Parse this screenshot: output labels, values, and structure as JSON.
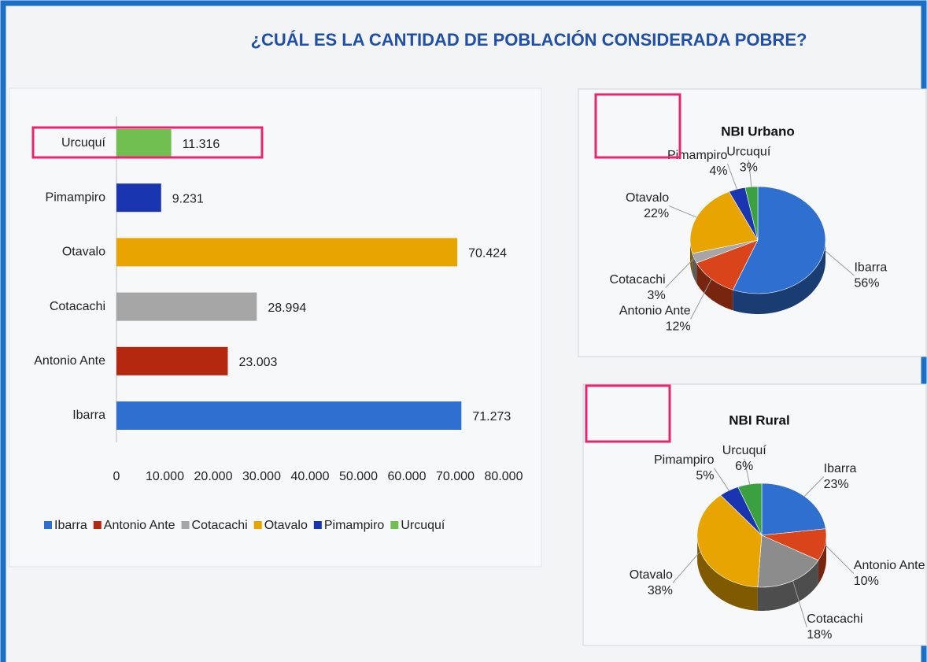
{
  "title": "¿CUÁL ES LA CANTIDAD DE POBLACIÓN CONSIDERADA POBRE?",
  "chart_data": [
    {
      "type": "bar",
      "orientation": "horizontal",
      "categories": [
        "Ibarra",
        "Antonio Ante",
        "Cotacachi",
        "Otavalo",
        "Pimampiro",
        "Urcuquí"
      ],
      "values": [
        71273,
        23003,
        28994,
        70424,
        9231,
        11316
      ],
      "value_labels": [
        "71.273",
        "23.003",
        "28.994",
        "70.424",
        "9.231",
        "11.316"
      ],
      "colors": [
        "#2e6fcf",
        "#b3280e",
        "#a6a6a6",
        "#e8a400",
        "#1a35b0",
        "#70bf50"
      ],
      "xlim": [
        0,
        80000
      ],
      "xticks": [
        0,
        {
          "value": 10000,
          "label": "10.000"
        },
        {
          "value": 20000,
          "label": "20.000"
        },
        {
          "value": 30000,
          "label": "30.000"
        },
        {
          "value": 40000,
          "label": "40.000"
        },
        {
          "value": 50000,
          "label": "50.000"
        },
        {
          "value": 60000,
          "label": "60.000"
        },
        {
          "value": 70000,
          "label": "70.000"
        },
        {
          "value": 80000,
          "label": "80.000"
        }
      ],
      "legend": "bottom"
    },
    {
      "type": "pie",
      "title": "NBI Urbano",
      "categories": [
        "Ibarra",
        "Antonio Ante",
        "Cotacachi",
        "Otavalo",
        "Pimampiro",
        "Urcuquí"
      ],
      "values": [
        56,
        12,
        3,
        22,
        4,
        3
      ],
      "value_labels": [
        "56%",
        "12%",
        "3%",
        "22%",
        "4%",
        "3%"
      ],
      "colors": [
        "#2e6fcf",
        "#d9441a",
        "#a6a6a6",
        "#e8a400",
        "#1a35b0",
        "#3aa040"
      ]
    },
    {
      "type": "pie",
      "title": "NBI Rural",
      "categories": [
        "Ibarra",
        "Antonio Ante",
        "Cotacachi",
        "Otavalo",
        "Pimampiro",
        "Urcuquí"
      ],
      "values": [
        23,
        10,
        18,
        38,
        5,
        6
      ],
      "value_labels": [
        "23%",
        "10%",
        "18%",
        "38%",
        "5%",
        "6%"
      ],
      "colors": [
        "#2e6fcf",
        "#d9441a",
        "#8c8c8c",
        "#e8a400",
        "#1a35b0",
        "#3aa040"
      ]
    }
  ]
}
